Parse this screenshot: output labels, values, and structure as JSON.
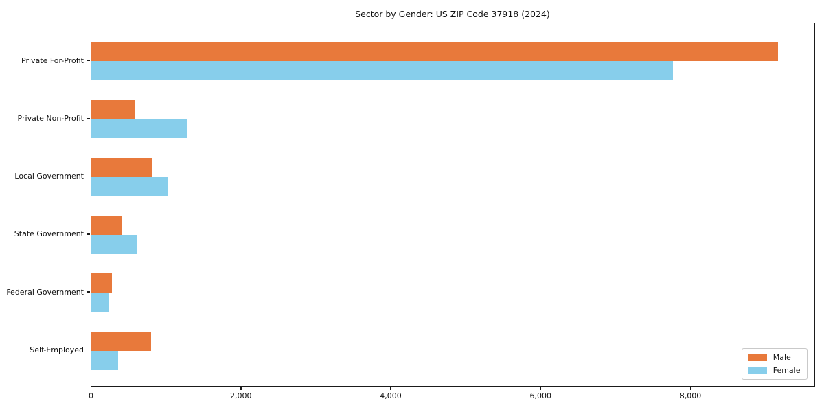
{
  "chart_data": {
    "type": "bar",
    "orientation": "horizontal",
    "title": "Sector by Gender: US ZIP Code 37918 (2024)",
    "categories": [
      "Private For-Profit",
      "Private Non-Profit",
      "Local Government",
      "State Government",
      "Federal Government",
      "Self-Employed"
    ],
    "series": [
      {
        "name": "Male",
        "color": "#E8793B",
        "values": [
          9170,
          590,
          810,
          420,
          280,
          800
        ]
      },
      {
        "name": "Female",
        "color": "#87CEEB",
        "values": [
          7770,
          1290,
          1020,
          620,
          240,
          360
        ]
      }
    ],
    "xlabel": "",
    "ylabel": "",
    "xlim": [
      0,
      9640
    ],
    "xticks": [
      0,
      2000,
      4000,
      6000,
      8000
    ],
    "xtick_labels": [
      "0",
      "2,000",
      "4,000",
      "6,000",
      "8,000"
    ],
    "legend_position": "lower right",
    "grid": false,
    "background_color": "#ffffff",
    "spine_color": "#1a1a1a"
  }
}
